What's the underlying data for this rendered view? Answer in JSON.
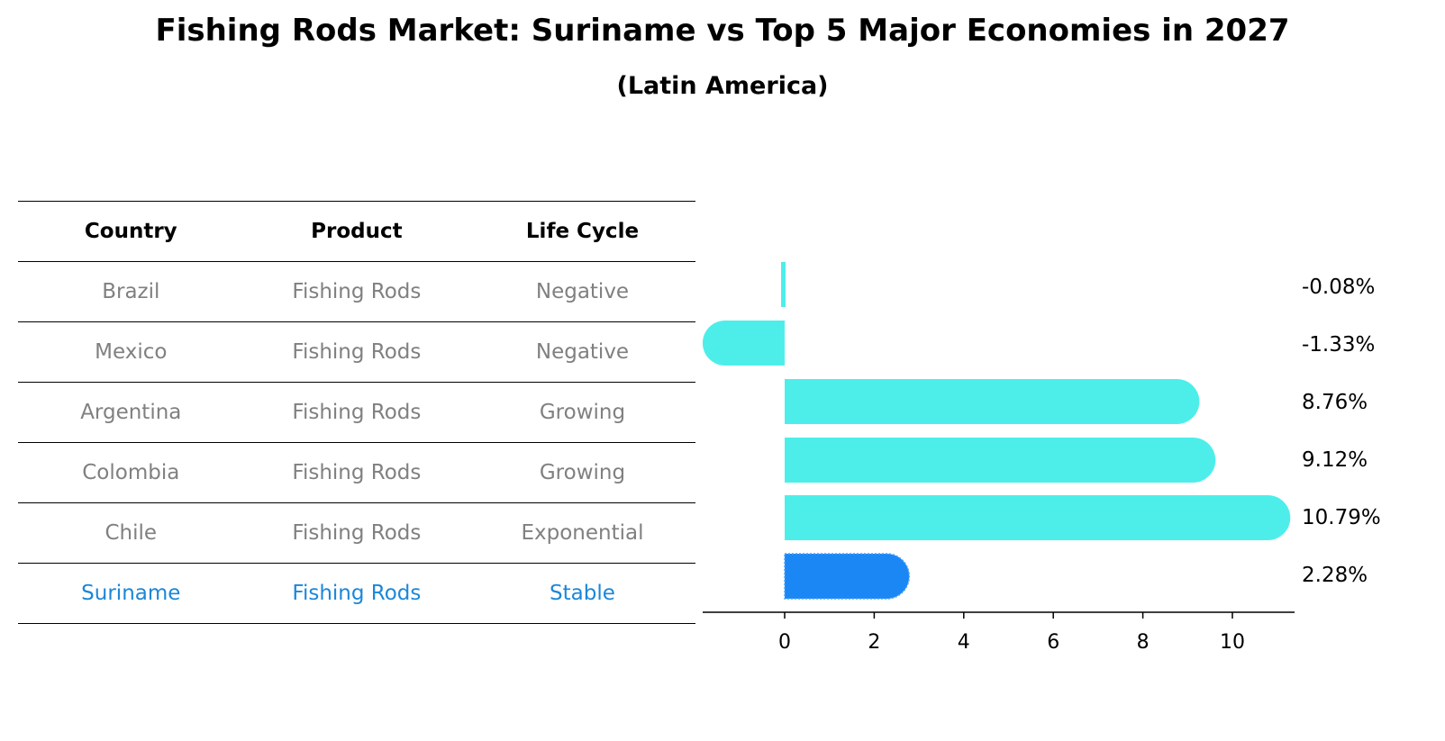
{
  "title": "Fishing Rods Market: Suriname vs Top 5 Major Economies in 2027",
  "subtitle": "(Latin America)",
  "table": {
    "headers": [
      "Country",
      "Product",
      "Life Cycle"
    ],
    "rows": [
      {
        "country": "Brazil",
        "product": "Fishing Rods",
        "life_cycle": "Negative"
      },
      {
        "country": "Mexico",
        "product": "Fishing Rods",
        "life_cycle": "Negative"
      },
      {
        "country": "Argentina",
        "product": "Fishing Rods",
        "life_cycle": "Growing"
      },
      {
        "country": "Colombia",
        "product": "Fishing Rods",
        "life_cycle": "Growing"
      },
      {
        "country": "Chile",
        "product": "Fishing Rods",
        "life_cycle": "Exponential"
      },
      {
        "country": "Suriname",
        "product": "Fishing Rods",
        "life_cycle": "Stable"
      }
    ]
  },
  "chart_data": {
    "type": "bar",
    "orientation": "horizontal",
    "categories": [
      "Brazil",
      "Mexico",
      "Argentina",
      "Colombia",
      "Chile",
      "Suriname"
    ],
    "values": [
      -0.08,
      -1.33,
      8.76,
      9.12,
      10.79,
      2.28
    ],
    "value_labels": [
      "-0.08%",
      "-1.33%",
      "8.76%",
      "9.12%",
      "10.79%",
      "2.28%"
    ],
    "highlight_category": "Suriname",
    "xticks": [
      0,
      2,
      4,
      6,
      8,
      10
    ],
    "xlim": [
      -1.95,
      11.4
    ],
    "colors": {
      "bar": "#4deeea",
      "highlight": "#1b87f5",
      "highlight_text": "#1b87d9"
    }
  }
}
